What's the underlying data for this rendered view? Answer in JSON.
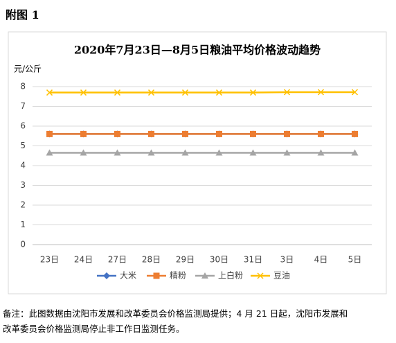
{
  "heading": "附图 1",
  "chart_data": {
    "type": "line",
    "title": "2020年7月23日—8月5日粮油平均价格波动趋势",
    "y_label": "元/公斤",
    "categories": [
      "23日",
      "24日",
      "27日",
      "28日",
      "29日",
      "30日",
      "31日",
      "3日",
      "4日",
      "5日"
    ],
    "series": [
      {
        "name": "大米",
        "color": "#4472c4",
        "marker": "diamond",
        "values": [
          5.6,
          5.6,
          5.6,
          5.6,
          5.6,
          5.6,
          5.6,
          5.6,
          5.6,
          5.6
        ]
      },
      {
        "name": "精粉",
        "color": "#ed7d31",
        "marker": "square",
        "values": [
          5.6,
          5.6,
          5.6,
          5.6,
          5.6,
          5.6,
          5.6,
          5.6,
          5.6,
          5.6
        ]
      },
      {
        "name": "上白粉",
        "color": "#a5a5a5",
        "marker": "triangle",
        "values": [
          4.65,
          4.65,
          4.65,
          4.65,
          4.65,
          4.65,
          4.65,
          4.65,
          4.65,
          4.65
        ]
      },
      {
        "name": "豆油",
        "color": "#ffc000",
        "marker": "x",
        "values": [
          7.7,
          7.7,
          7.7,
          7.7,
          7.7,
          7.7,
          7.7,
          7.72,
          7.72,
          7.72
        ]
      }
    ],
    "ylim": [
      0,
      8
    ],
    "yticks": [
      0,
      1,
      2,
      3,
      4,
      5,
      6,
      7,
      8
    ],
    "grid": true,
    "legend": "bottom"
  },
  "note": [
    "备注：此图数据由沈阳市发展和改革委员会价格监测局提供；4 月 21 日起，沈阳市发展和",
    "改革委员会价格监测局停止非工作日监测任务。"
  ]
}
